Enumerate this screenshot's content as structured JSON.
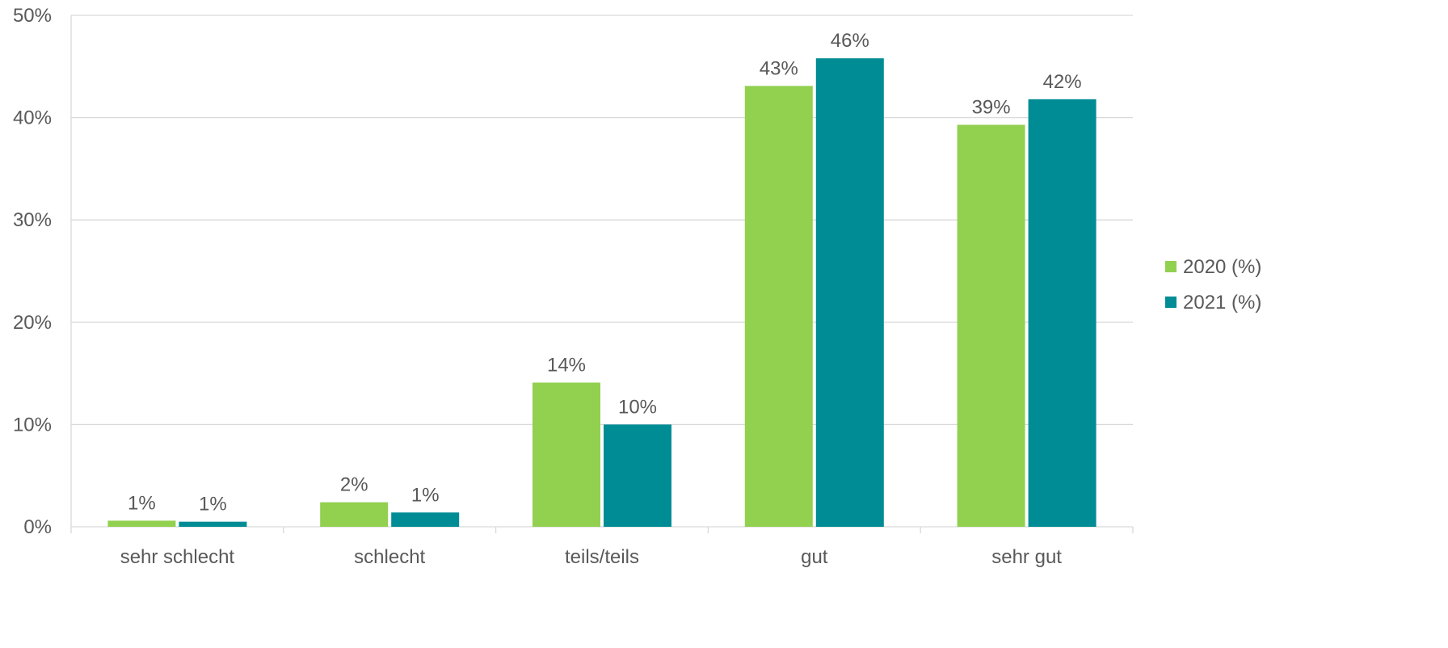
{
  "chart_data": {
    "type": "bar",
    "categories": [
      "sehr schlecht",
      "schlecht",
      "teils/teils",
      "gut",
      "sehr gut"
    ],
    "series": [
      {
        "name": "2020 (%)",
        "color": "#92d050",
        "values": [
          0.6,
          2.4,
          14.1,
          43.1,
          39.3
        ],
        "labels": [
          "1%",
          "2%",
          "14%",
          "43%",
          "39%"
        ]
      },
      {
        "name": "2021 (%)",
        "color": "#008c95",
        "values": [
          0.5,
          1.4,
          10.0,
          45.8,
          41.8
        ],
        "labels": [
          "1%",
          "1%",
          "10%",
          "46%",
          "42%"
        ]
      }
    ],
    "ylim": [
      0,
      50
    ],
    "yticks": [
      0,
      10,
      20,
      30,
      40,
      50
    ],
    "ytick_labels": [
      "0%",
      "10%",
      "20%",
      "30%",
      "40%",
      "50%"
    ],
    "grid": true,
    "legend_position": "right",
    "title": "",
    "xlabel": "",
    "ylabel": ""
  }
}
